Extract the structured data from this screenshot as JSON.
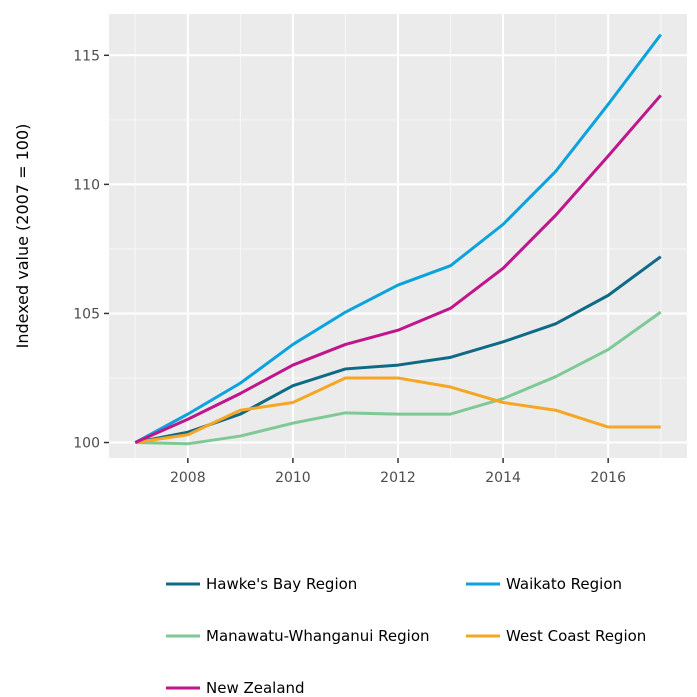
{
  "chart_data": {
    "type": "line",
    "title": "",
    "xlabel": "",
    "ylabel": "Indexed value (2007 = 100)",
    "xlim": [
      2006.5,
      2017.5
    ],
    "ylim": [
      99.4,
      116.6
    ],
    "x_ticks": [
      2008,
      2010,
      2012,
      2014,
      2016
    ],
    "y_ticks": [
      100,
      105,
      110,
      115
    ],
    "grid": true,
    "legend_position": "bottom",
    "x": [
      2007,
      2008,
      2009,
      2010,
      2011,
      2012,
      2013,
      2014,
      2015,
      2016,
      2017
    ],
    "series": [
      {
        "name": "Hawke's Bay Region",
        "color": "#0f6b85",
        "values": [
          100.0,
          100.4,
          101.1,
          102.2,
          102.85,
          103.0,
          103.3,
          103.9,
          104.6,
          105.7,
          107.2
        ]
      },
      {
        "name": "Waikato Region",
        "color": "#0aa3dd",
        "values": [
          100.0,
          101.1,
          102.3,
          103.8,
          105.05,
          106.1,
          106.85,
          108.45,
          110.5,
          113.1,
          115.8
        ]
      },
      {
        "name": "Manawatu-Whanganui Region",
        "color": "#7ec996",
        "values": [
          100.0,
          99.95,
          100.25,
          100.75,
          101.15,
          101.1,
          101.1,
          101.7,
          102.55,
          103.6,
          105.05
        ]
      },
      {
        "name": "West Coast Region",
        "color": "#f5a623",
        "values": [
          100.0,
          100.3,
          101.25,
          101.55,
          102.5,
          102.5,
          102.15,
          101.55,
          101.25,
          100.6,
          100.6
        ]
      },
      {
        "name": "New Zealand",
        "color": "#c0168b",
        "values": [
          100.0,
          100.9,
          101.9,
          103.0,
          103.8,
          104.35,
          105.2,
          106.75,
          108.8,
          111.1,
          113.45
        ]
      }
    ]
  }
}
